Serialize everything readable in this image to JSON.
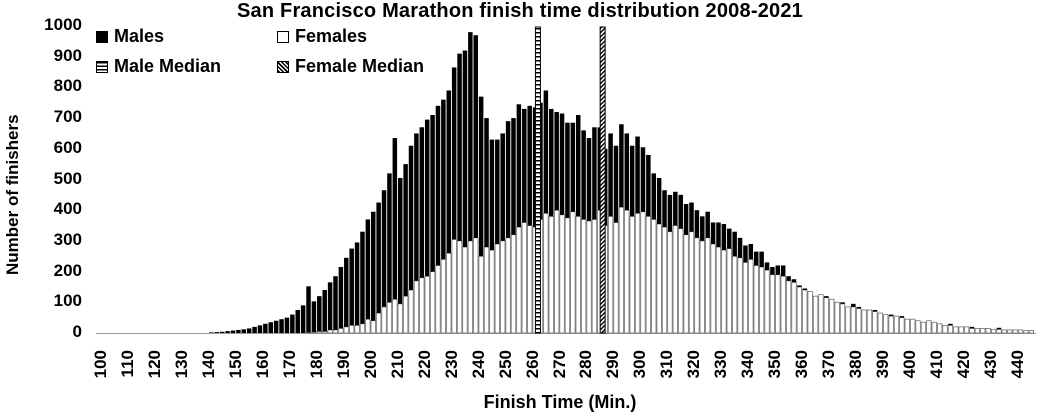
{
  "chart_data": {
    "type": "bar",
    "stacked": true,
    "title": "San Francisco Marathon finish time distribution 2008-2021",
    "xlabel": "Finish Time (Min.)",
    "ylabel": "Number of finishers",
    "ylim": [
      0,
      1000
    ],
    "yticks": [
      0,
      100,
      200,
      300,
      400,
      500,
      600,
      700,
      800,
      900,
      1000
    ],
    "xticks": [
      100,
      110,
      120,
      130,
      140,
      150,
      160,
      170,
      180,
      190,
      200,
      210,
      220,
      230,
      240,
      250,
      260,
      270,
      280,
      290,
      300,
      310,
      320,
      330,
      340,
      350,
      360,
      370,
      380,
      390,
      400,
      410,
      420,
      430,
      440
    ],
    "xlim": [
      100,
      446
    ],
    "bin_width_min": 2,
    "grid": false,
    "legend": {
      "position": "top-left inside",
      "entries": [
        "Males",
        "Females",
        "Male Median",
        "Female Median"
      ]
    },
    "medians": {
      "male": 262,
      "female": 286
    },
    "bin_start": [
      100,
      102,
      104,
      106,
      108,
      110,
      112,
      114,
      116,
      118,
      120,
      122,
      124,
      126,
      128,
      130,
      132,
      134,
      136,
      138,
      140,
      142,
      144,
      146,
      148,
      150,
      152,
      154,
      156,
      158,
      160,
      162,
      164,
      166,
      168,
      170,
      172,
      174,
      176,
      178,
      180,
      182,
      184,
      186,
      188,
      190,
      192,
      194,
      196,
      198,
      200,
      202,
      204,
      206,
      208,
      210,
      212,
      214,
      216,
      218,
      220,
      222,
      224,
      226,
      228,
      230,
      232,
      234,
      236,
      238,
      240,
      242,
      244,
      246,
      248,
      250,
      252,
      254,
      256,
      258,
      260,
      262,
      264,
      266,
      268,
      270,
      272,
      274,
      276,
      278,
      280,
      282,
      284,
      286,
      288,
      290,
      292,
      294,
      296,
      298,
      300,
      302,
      304,
      306,
      308,
      310,
      312,
      314,
      316,
      318,
      320,
      322,
      324,
      326,
      328,
      330,
      332,
      334,
      336,
      338,
      340,
      342,
      344,
      346,
      348,
      350,
      352,
      354,
      356,
      358,
      360,
      362,
      364,
      366,
      368,
      370,
      372,
      374,
      376,
      378,
      380,
      382,
      384,
      386,
      388,
      390,
      392,
      394,
      396,
      398,
      400,
      402,
      404,
      406,
      408,
      410,
      412,
      414,
      416,
      418,
      420,
      422,
      424,
      426,
      428,
      430,
      432,
      434,
      436,
      438,
      440,
      442,
      444
    ],
    "series": [
      {
        "name": "Males",
        "color": "#000000",
        "values": [
          0,
          0,
          0,
          0,
          0,
          0,
          0,
          0,
          0,
          0,
          0,
          0,
          0,
          0,
          0,
          0,
          0,
          0,
          0,
          0,
          2,
          3,
          4,
          6,
          8,
          10,
          12,
          15,
          20,
          25,
          30,
          35,
          40,
          45,
          50,
          60,
          75,
          90,
          150,
          100,
          115,
          135,
          155,
          175,
          200,
          225,
          250,
          270,
          300,
          325,
          355,
          360,
          380,
          420,
          525,
          410,
          430,
          470,
          480,
          490,
          510,
          510,
          520,
          520,
          530,
          560,
          610,
          640,
          680,
          660,
          520,
          420,
          360,
          340,
          350,
          380,
          380,
          400,
          370,
          390,
          390,
          380,
          400,
          350,
          320,
          330,
          310,
          290,
          330,
          290,
          270,
          300,
          270,
          250,
          270,
          250,
          270,
          250,
          230,
          250,
          210,
          200,
          150,
          150,
          120,
          120,
          110,
          110,
          100,
          95,
          90,
          80,
          85,
          70,
          80,
          85,
          65,
          80,
          65,
          55,
          50,
          45,
          50,
          25,
          25,
          30,
          35,
          15,
          10,
          5,
          5,
          0,
          0,
          0,
          5,
          0,
          0,
          5,
          0,
          10,
          5,
          0,
          0,
          5,
          0,
          0,
          5,
          0,
          5,
          0,
          0,
          0,
          0,
          0,
          0,
          0,
          0,
          5,
          0,
          0,
          0,
          5,
          0,
          0,
          0,
          0,
          5,
          0,
          0,
          0,
          0,
          0,
          0,
          0,
          0
        ],
        "note": "male segment height stacked above female count"
      },
      {
        "name": "Females",
        "color": "#ffffff",
        "values": [
          0,
          0,
          0,
          0,
          0,
          0,
          0,
          0,
          0,
          0,
          0,
          0,
          0,
          0,
          0,
          0,
          0,
          0,
          0,
          0,
          0,
          0,
          0,
          0,
          0,
          0,
          0,
          0,
          0,
          0,
          0,
          0,
          0,
          0,
          0,
          0,
          0,
          0,
          2,
          3,
          5,
          5,
          10,
          10,
          15,
          20,
          25,
          25,
          30,
          45,
          40,
          65,
          85,
          100,
          110,
          95,
          120,
          140,
          170,
          180,
          185,
          200,
          220,
          240,
          260,
          305,
          300,
          280,
          300,
          310,
          250,
          280,
          270,
          290,
          300,
          310,
          320,
          345,
          360,
          350,
          345,
          370,
          390,
          380,
          400,
          385,
          375,
          395,
          380,
          370,
          365,
          370,
          400,
          350,
          380,
          360,
          410,
          400,
          380,
          390,
          395,
          380,
          370,
          355,
          345,
          330,
          350,
          340,
          320,
          330,
          310,
          300,
          310,
          290,
          280,
          270,
          275,
          250,
          245,
          230,
          240,
          220,
          215,
          205,
          190,
          190,
          185,
          170,
          165,
          150,
          140,
          135,
          120,
          125,
          115,
          110,
          100,
          95,
          85,
          85,
          80,
          75,
          75,
          70,
          65,
          60,
          55,
          55,
          50,
          45,
          45,
          40,
          35,
          40,
          35,
          30,
          25,
          25,
          20,
          20,
          20,
          15,
          15,
          15,
          15,
          12,
          12,
          10,
          10,
          10,
          10,
          8,
          8,
          8,
          8
        ]
      }
    ],
    "totals_approx": [
      0,
      0,
      0,
      0,
      0,
      0,
      0,
      0,
      0,
      0,
      0,
      0,
      0,
      0,
      0,
      0,
      0,
      0,
      0,
      0,
      2,
      3,
      4,
      6,
      8,
      10,
      12,
      15,
      20,
      25,
      30,
      35,
      40,
      45,
      50,
      60,
      75,
      90,
      152,
      103,
      120,
      140,
      165,
      185,
      215,
      245,
      275,
      295,
      330,
      370,
      395,
      425,
      465,
      520,
      635,
      505,
      550,
      610,
      650,
      670,
      695,
      710,
      740,
      760,
      790,
      865,
      910,
      920,
      980,
      970,
      770,
      700,
      630,
      630,
      650,
      690,
      700,
      745,
      730,
      740,
      735,
      750,
      790,
      730,
      720,
      715,
      685,
      685,
      710,
      660,
      635,
      670,
      670,
      600,
      650,
      610,
      680,
      650,
      610,
      640,
      605,
      580,
      520,
      505,
      465,
      450,
      460,
      450,
      420,
      425,
      400,
      380,
      395,
      360,
      360,
      355,
      340,
      330,
      310,
      285,
      290,
      265,
      265,
      230,
      215,
      220,
      220,
      185,
      175,
      155,
      145,
      135,
      120,
      125,
      120,
      110,
      100,
      100,
      85,
      95,
      85,
      75,
      75,
      75,
      65,
      60,
      60,
      55,
      55,
      45,
      45,
      40,
      35,
      40,
      35,
      35,
      25,
      25,
      20,
      25,
      20,
      15,
      15,
      15,
      20,
      12,
      12,
      10,
      10,
      10,
      10,
      8,
      8,
      8,
      8
    ]
  },
  "legend_labels": {
    "males": "Males",
    "females": "Females",
    "male_median": "Male Median",
    "female_median": "Female Median"
  }
}
